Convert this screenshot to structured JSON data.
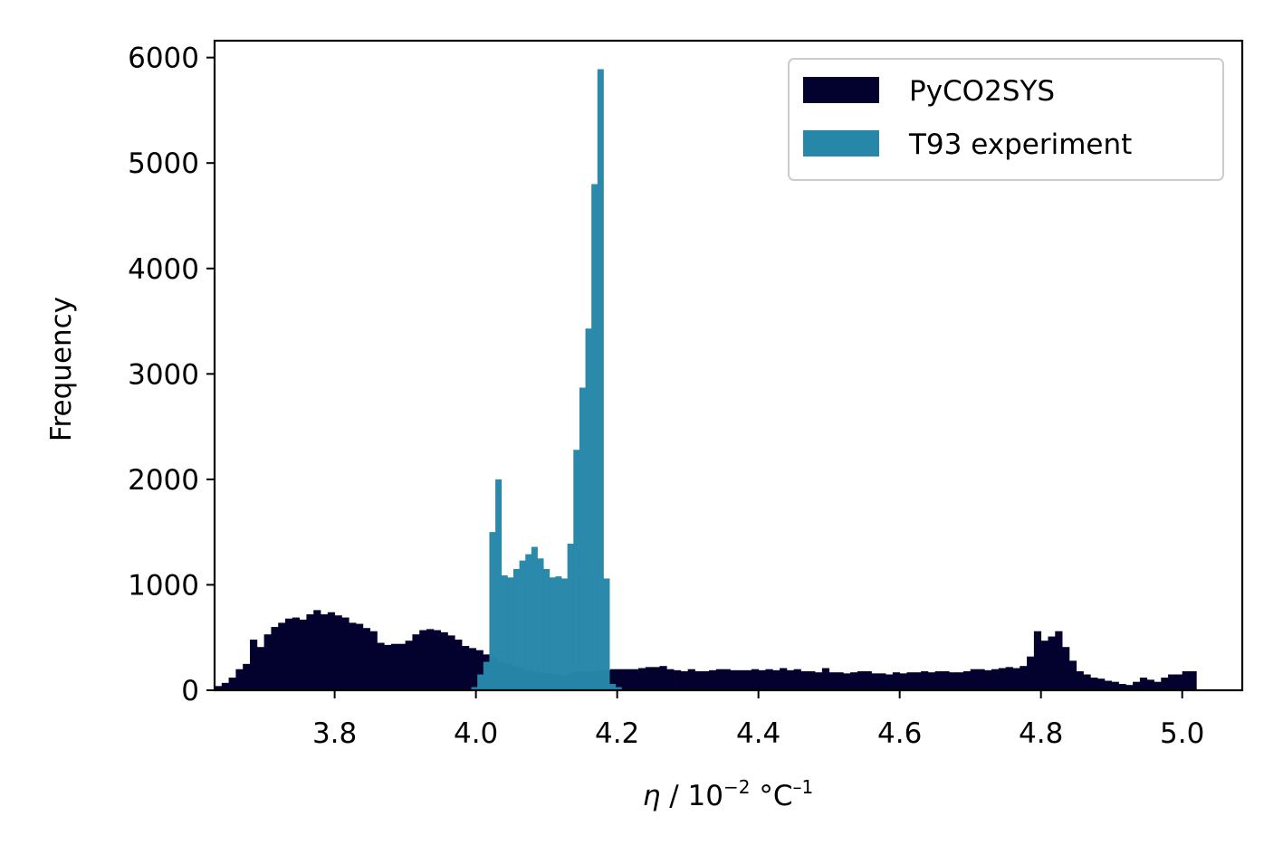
{
  "chart_data": {
    "type": "bar",
    "title": "",
    "xlabel": "η / 10⁻² °C⁻¹",
    "xlabel_parts": {
      "symbol": "η",
      "middle": " / 10",
      "exp1": "−2",
      "unit": " °C",
      "exp2": "–1"
    },
    "ylabel": "Frequency",
    "xlim": [
      3.63,
      5.085
    ],
    "ylim": [
      0,
      6160
    ],
    "xticks": [
      3.8,
      4.0,
      4.2,
      4.4,
      4.6,
      4.8,
      5.0
    ],
    "xtick_labels": [
      "3.8",
      "4.0",
      "4.2",
      "4.4",
      "4.6",
      "4.8",
      "5.0"
    ],
    "yticks": [
      0,
      1000,
      2000,
      3000,
      4000,
      5000,
      6000
    ],
    "ytick_labels": [
      "0",
      "1000",
      "2000",
      "3000",
      "4000",
      "5000",
      "6000"
    ],
    "grid": false,
    "legend": "top-right",
    "series": [
      {
        "name": "PyCO2SYS",
        "color": "#03012d",
        "bin_start": 3.63,
        "bin_width": 0.01,
        "values": [
          40,
          70,
          120,
          200,
          250,
          480,
          410,
          530,
          600,
          640,
          680,
          690,
          670,
          720,
          760,
          720,
          740,
          710,
          690,
          640,
          630,
          590,
          560,
          450,
          430,
          440,
          440,
          470,
          530,
          570,
          580,
          570,
          550,
          520,
          480,
          420,
          400,
          380,
          340,
          310,
          270,
          250,
          230,
          210,
          190,
          180,
          170,
          160,
          150,
          140,
          160,
          170,
          170,
          170,
          180,
          190,
          200,
          200,
          200,
          200,
          210,
          220,
          220,
          230,
          200,
          190,
          180,
          200,
          180,
          180,
          190,
          200,
          200,
          190,
          190,
          190,
          200,
          190,
          200,
          190,
          210,
          190,
          200,
          180,
          180,
          170,
          210,
          170,
          170,
          160,
          170,
          180,
          180,
          160,
          160,
          150,
          170,
          160,
          170,
          170,
          180,
          170,
          180,
          180,
          170,
          170,
          180,
          200,
          200,
          190,
          200,
          210,
          220,
          210,
          230,
          320,
          560,
          470,
          510,
          560,
          410,
          280,
          180,
          150,
          120,
          110,
          90,
          80,
          60,
          50,
          80,
          120,
          100,
          80,
          120,
          150,
          150,
          180,
          180
        ]
      },
      {
        "name": "T93 experiment",
        "color": "#2787a9",
        "bin_start": 3.985,
        "bin_width": 0.0085,
        "values": [
          5,
          30,
          150,
          270,
          1500,
          2000,
          1090,
          1070,
          1150,
          1230,
          1290,
          1360,
          1250,
          1150,
          1070,
          1080,
          1060,
          1390,
          2280,
          2870,
          3430,
          4800,
          5890,
          1060,
          60,
          30
        ]
      }
    ]
  }
}
